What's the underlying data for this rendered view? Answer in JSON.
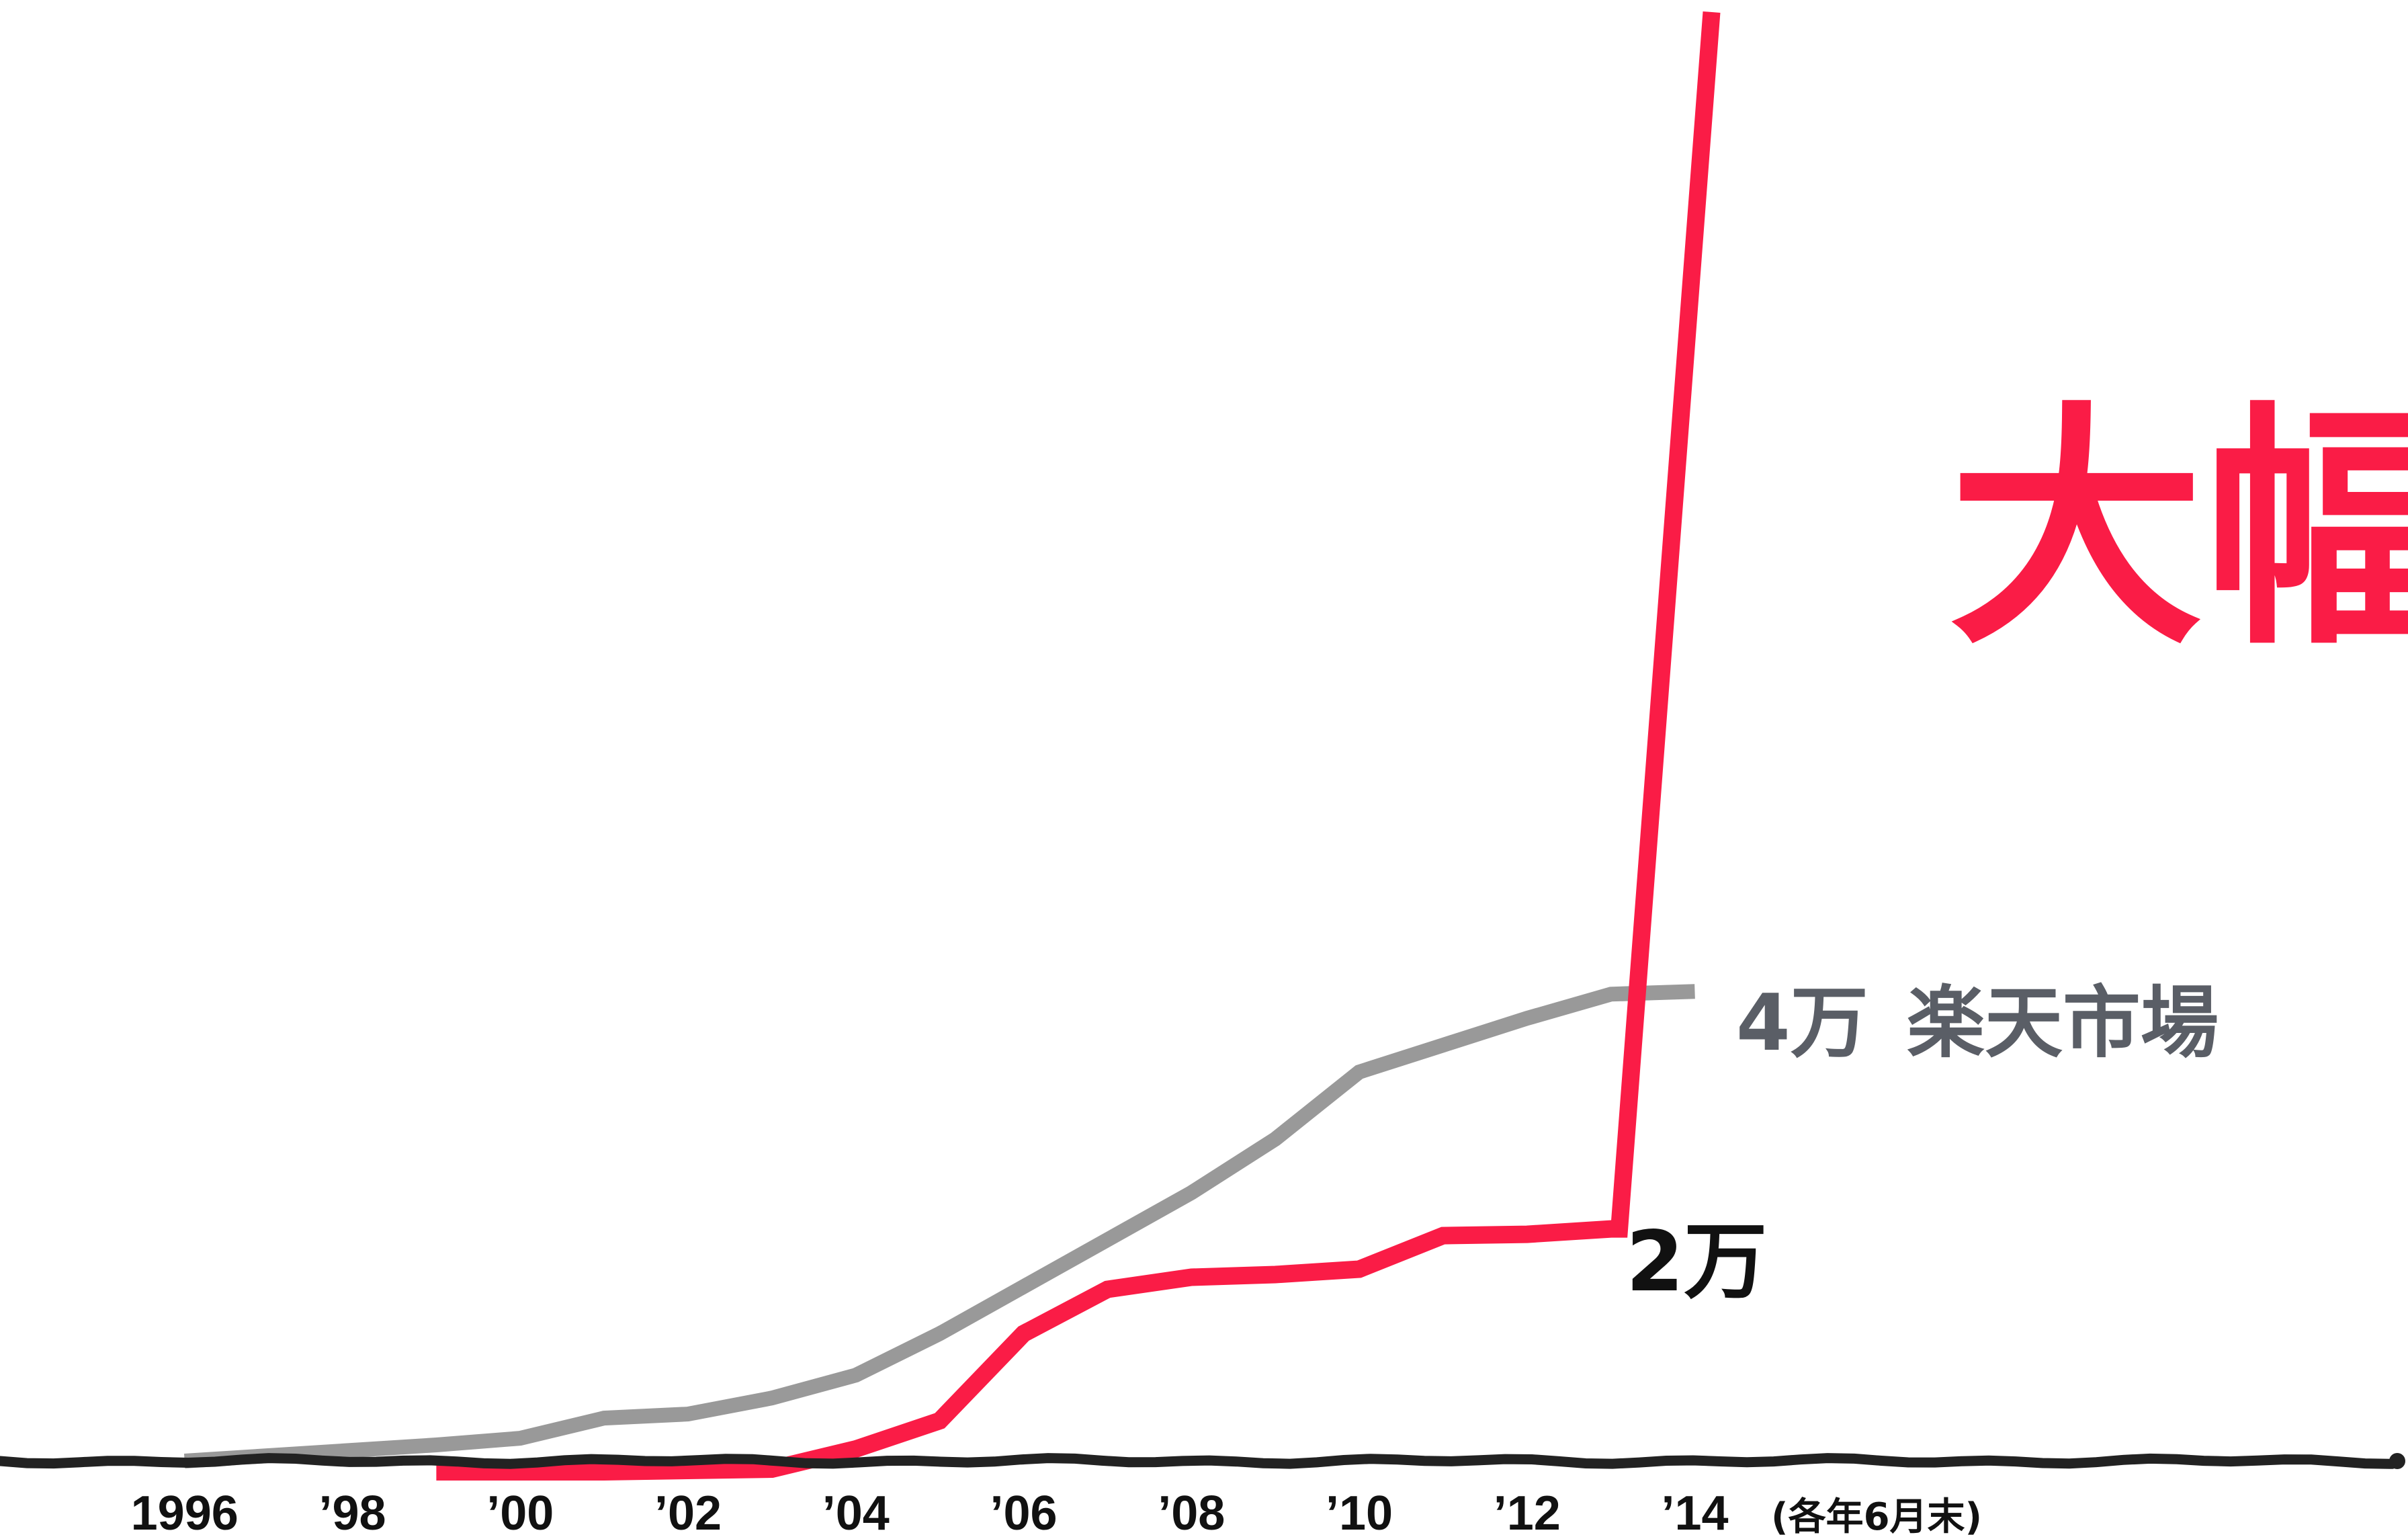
{
  "chart_data": {
    "type": "line",
    "title": "",
    "subtitle": "",
    "headline": "大幅",
    "xlabel": "",
    "ylabel": "",
    "x_note": "(各年6月末)",
    "x_tick_labels": [
      "1996",
      "’98",
      "’00",
      "’02",
      "’04",
      "’06",
      "’08",
      "’10",
      "’12",
      "’14"
    ],
    "x_tick_values": [
      1996,
      1998,
      2000,
      2002,
      2004,
      2006,
      2008,
      2010,
      2012,
      2014
    ],
    "xlim": [
      1993.8,
      2022.5
    ],
    "ylim": [
      0,
      108000
    ],
    "grid": false,
    "legend": "none",
    "series": [
      {
        "name": "楽天市場",
        "color": "#999999",
        "points": [
          {
            "x": 1996,
            "y": 0
          },
          {
            "x": 1997,
            "y": 400
          },
          {
            "x": 1998,
            "y": 800
          },
          {
            "x": 1999,
            "y": 1200
          },
          {
            "x": 2000,
            "y": 1700
          },
          {
            "x": 2001,
            "y": 3200
          },
          {
            "x": 2002,
            "y": 3500
          },
          {
            "x": 2003,
            "y": 4700
          },
          {
            "x": 2004,
            "y": 6400
          },
          {
            "x": 2005,
            "y": 9500
          },
          {
            "x": 2006,
            "y": 13000
          },
          {
            "x": 2007,
            "y": 16500
          },
          {
            "x": 2008,
            "y": 20000
          },
          {
            "x": 2009,
            "y": 24000
          },
          {
            "x": 2010,
            "y": 29000
          },
          {
            "x": 2011,
            "y": 31000
          },
          {
            "x": 2012,
            "y": 33000
          },
          {
            "x": 2013,
            "y": 34800
          },
          {
            "x": 2014,
            "y": 35000
          }
        ],
        "end_label": {
          "value": "4万",
          "name": "楽天市場"
        }
      },
      {
        "name": "",
        "color": "#FA1C46",
        "points": [
          {
            "x": 1999,
            "y": -800
          },
          {
            "x": 2000,
            "y": -800
          },
          {
            "x": 2001,
            "y": -800
          },
          {
            "x": 2002,
            "y": -700
          },
          {
            "x": 2003,
            "y": -600
          },
          {
            "x": 2004,
            "y": 900
          },
          {
            "x": 2005,
            "y": 3000
          },
          {
            "x": 2006,
            "y": 9500
          },
          {
            "x": 2007,
            "y": 12800
          },
          {
            "x": 2008,
            "y": 13700
          },
          {
            "x": 2009,
            "y": 13900
          },
          {
            "x": 2010,
            "y": 14300
          },
          {
            "x": 2011,
            "y": 16800
          },
          {
            "x": 2012,
            "y": 16900
          },
          {
            "x": 2013,
            "y": 17300
          },
          {
            "x": 2013.1,
            "y": 17300
          },
          {
            "x": 2014.2,
            "y": 108000
          }
        ],
        "end_label": {
          "value": "2万",
          "name": ""
        }
      }
    ]
  }
}
